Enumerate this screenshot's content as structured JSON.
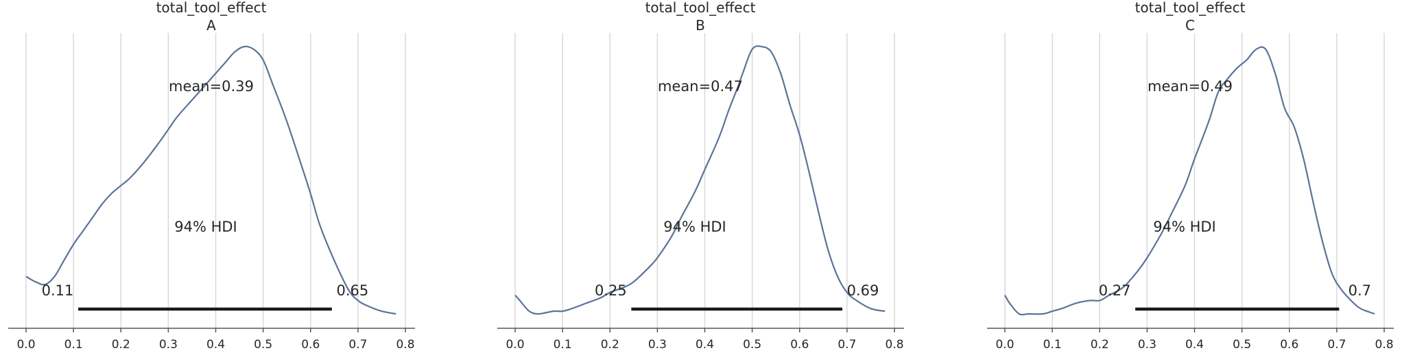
{
  "chart_data": [
    {
      "type": "area",
      "title": "total_tool_effect\nA",
      "title_lines": [
        "total_tool_effect",
        "A"
      ],
      "xlim": [
        -0.03,
        0.82
      ],
      "x_ticks": [
        0.0,
        0.1,
        0.2,
        0.3,
        0.4,
        0.5,
        0.6,
        0.7,
        0.8
      ],
      "x_tick_labels": [
        "0.0",
        "0.1",
        "0.2",
        "0.3",
        "0.4",
        "0.5",
        "0.6",
        "0.7",
        "0.8"
      ],
      "grid": "vertical",
      "curve_color": "#5a7396",
      "density": {
        "x": [
          0.0,
          0.02,
          0.04,
          0.06,
          0.08,
          0.1,
          0.12,
          0.14,
          0.16,
          0.18,
          0.2,
          0.22,
          0.25,
          0.28,
          0.3,
          0.32,
          0.35,
          0.38,
          0.4,
          0.42,
          0.44,
          0.46,
          0.48,
          0.5,
          0.52,
          0.55,
          0.58,
          0.6,
          0.62,
          0.65,
          0.68,
          0.7,
          0.72,
          0.75,
          0.78
        ],
        "y": [
          0.14,
          0.12,
          0.11,
          0.14,
          0.2,
          0.26,
          0.31,
          0.36,
          0.41,
          0.45,
          0.48,
          0.51,
          0.57,
          0.64,
          0.69,
          0.74,
          0.8,
          0.86,
          0.9,
          0.94,
          0.98,
          1.0,
          0.99,
          0.95,
          0.86,
          0.72,
          0.56,
          0.45,
          0.33,
          0.2,
          0.09,
          0.05,
          0.03,
          0.01,
          0.0
        ]
      },
      "mean_label": "mean=0.39",
      "hdi_label": "94% HDI",
      "hdi": [
        0.11,
        0.645
      ],
      "hdi_low_label": "0.11",
      "hdi_high_label": "0.65"
    },
    {
      "type": "area",
      "title": "total_tool_effect\nB",
      "title_lines": [
        "total_tool_effect",
        "B"
      ],
      "xlim": [
        -0.03,
        0.82
      ],
      "x_ticks": [
        0.0,
        0.1,
        0.2,
        0.3,
        0.4,
        0.5,
        0.6,
        0.7,
        0.8
      ],
      "x_tick_labels": [
        "0.0",
        "0.1",
        "0.2",
        "0.3",
        "0.4",
        "0.5",
        "0.6",
        "0.7",
        "0.8"
      ],
      "grid": "vertical",
      "curve_color": "#5a7396",
      "density": {
        "x": [
          0.0,
          0.01,
          0.03,
          0.05,
          0.08,
          0.1,
          0.12,
          0.15,
          0.18,
          0.2,
          0.23,
          0.25,
          0.28,
          0.3,
          0.33,
          0.35,
          0.38,
          0.4,
          0.43,
          0.45,
          0.47,
          0.48,
          0.5,
          0.52,
          0.54,
          0.56,
          0.58,
          0.6,
          0.62,
          0.64,
          0.66,
          0.68,
          0.7,
          0.72,
          0.75,
          0.78
        ],
        "y": [
          0.07,
          0.05,
          0.01,
          0.0,
          0.01,
          0.01,
          0.02,
          0.04,
          0.06,
          0.08,
          0.1,
          0.12,
          0.17,
          0.21,
          0.29,
          0.36,
          0.46,
          0.54,
          0.66,
          0.76,
          0.85,
          0.9,
          0.99,
          1.0,
          0.98,
          0.9,
          0.78,
          0.67,
          0.53,
          0.38,
          0.24,
          0.14,
          0.08,
          0.05,
          0.02,
          0.01
        ]
      },
      "mean_label": "mean=0.47",
      "hdi_label": "94% HDI",
      "hdi": [
        0.245,
        0.69
      ],
      "hdi_low_label": "0.25",
      "hdi_high_label": "0.69"
    },
    {
      "type": "area",
      "title": "total_tool_effect\nC",
      "title_lines": [
        "total_tool_effect",
        "C"
      ],
      "xlim": [
        -0.03,
        0.82
      ],
      "x_ticks": [
        0.0,
        0.1,
        0.2,
        0.3,
        0.4,
        0.5,
        0.6,
        0.7,
        0.8
      ],
      "x_tick_labels": [
        "0.0",
        "0.1",
        "0.2",
        "0.3",
        "0.4",
        "0.5",
        "0.6",
        "0.7",
        "0.8"
      ],
      "grid": "vertical",
      "curve_color": "#5a7396",
      "density": {
        "x": [
          0.0,
          0.01,
          0.03,
          0.05,
          0.08,
          0.1,
          0.12,
          0.15,
          0.18,
          0.2,
          0.22,
          0.25,
          0.28,
          0.3,
          0.33,
          0.35,
          0.38,
          0.4,
          0.43,
          0.45,
          0.47,
          0.49,
          0.51,
          0.53,
          0.55,
          0.57,
          0.59,
          0.61,
          0.63,
          0.65,
          0.67,
          0.69,
          0.71,
          0.73,
          0.75,
          0.78
        ],
        "y": [
          0.07,
          0.04,
          0.0,
          0.0,
          0.0,
          0.01,
          0.02,
          0.04,
          0.05,
          0.05,
          0.07,
          0.1,
          0.16,
          0.21,
          0.3,
          0.37,
          0.48,
          0.58,
          0.72,
          0.83,
          0.88,
          0.92,
          0.95,
          0.99,
          0.99,
          0.9,
          0.77,
          0.7,
          0.58,
          0.42,
          0.27,
          0.15,
          0.09,
          0.05,
          0.02,
          0.0
        ]
      },
      "mean_label": "mean=0.49",
      "hdi_label": "94% HDI",
      "hdi": [
        0.275,
        0.705
      ],
      "hdi_low_label": "0.27",
      "hdi_high_label": "0.7"
    }
  ]
}
